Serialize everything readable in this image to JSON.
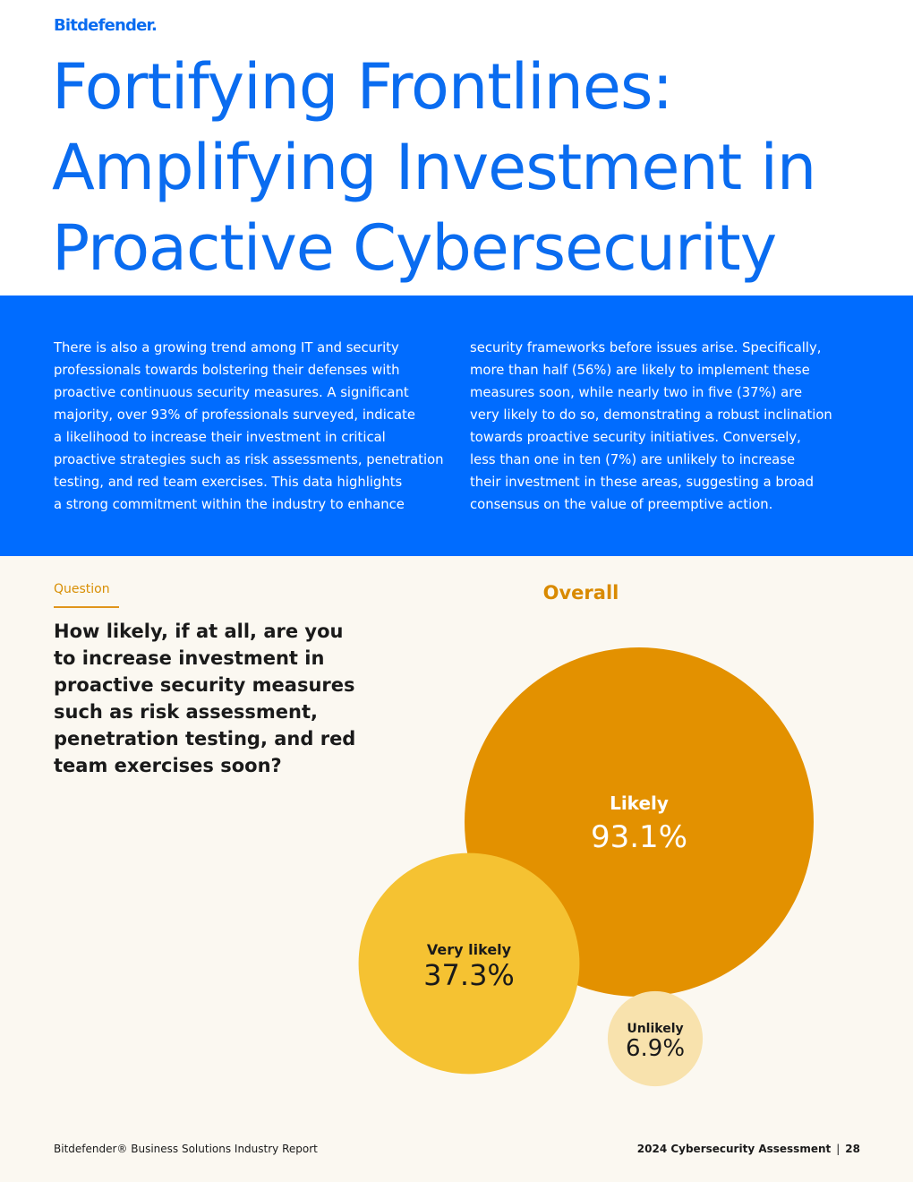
{
  "brand": {
    "logo_text": "Bitdefender."
  },
  "header": {
    "title_lines": [
      "Fortifying Frontlines:",
      "Amplifying Investment in",
      "Proactive Cybersecurity"
    ]
  },
  "intro": {
    "left_lines": [
      "There is also a growing trend among IT and security",
      "professionals towards bolstering their defenses with",
      "proactive continuous security measures. A significant",
      "majority, over 93% of professionals surveyed, indicate",
      "a likelihood to increase their investment in critical",
      "proactive strategies such as risk assessments, penetration",
      "testing, and red team exercises. This data highlights",
      "a strong commitment within the industry to enhance"
    ],
    "right_lines": [
      "security frameworks before issues arise. Specifically,",
      "more than half (56%) are likely to implement these",
      "measures soon, while nearly two in five (37%) are",
      "very likely to do so, demonstrating a robust inclination",
      "towards proactive security initiatives. Conversely,",
      "less than one in ten (7%) are unlikely to increase",
      "their investment in these areas, suggesting a broad",
      "consensus on the value of preemptive action."
    ]
  },
  "question": {
    "label": "Question",
    "text_lines": [
      "How likely, if at all, are you",
      "to increase investment in",
      "proactive security measures",
      "such as risk assessment,",
      "penetration testing, and red",
      "team exercises soon?"
    ]
  },
  "chart_data": {
    "type": "bubble",
    "title": "Overall",
    "unit": "%",
    "bubbles": [
      {
        "label": "Likely",
        "value": 93.1,
        "display": "93.1%",
        "color": "#e39100",
        "text_color": "#ffffff"
      },
      {
        "label": "Very likely",
        "value": 37.3,
        "display": "37.3%",
        "color": "#f5c232",
        "text_color": "#1a1a1a"
      },
      {
        "label": "Unlikely",
        "value": 6.9,
        "display": "6.9%",
        "color": "#f8e2ad",
        "text_color": "#1a1a1a"
      }
    ]
  },
  "footer": {
    "left": "Bitdefender® Business Solutions Industry Report",
    "report_name": "2024 Cybersecurity Assessment",
    "separator": "|",
    "page_number": "28"
  },
  "colors": {
    "brand_blue": "#0a6cf0",
    "band_blue": "#006cff",
    "page_bg": "#fbf8f1",
    "accent_orange": "#d98a00"
  }
}
